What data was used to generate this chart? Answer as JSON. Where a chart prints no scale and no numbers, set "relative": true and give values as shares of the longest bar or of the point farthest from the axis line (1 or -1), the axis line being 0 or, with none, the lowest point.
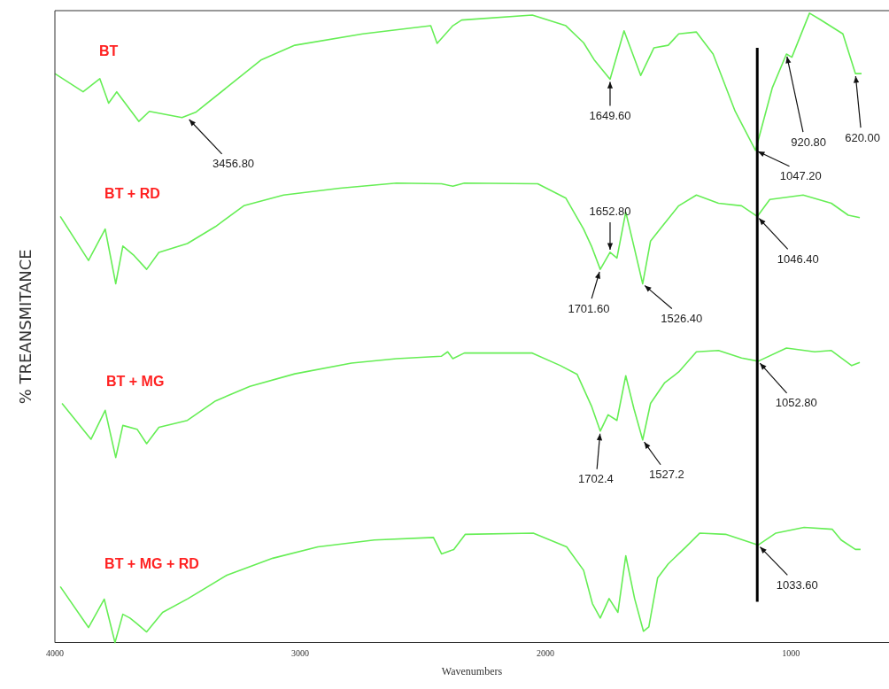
{
  "chart_data": {
    "type": "line",
    "relative": true,
    "xlabel": "Wavenumbers",
    "ylabel": "% TREANSMITANCE",
    "xlim": [
      4000,
      600
    ],
    "xticks": [
      4000,
      3000,
      2000,
      1000
    ],
    "grid": false,
    "legend": false,
    "marker": "none",
    "line_style": "solid",
    "ref_lines": [
      {
        "axis": "x",
        "value": 1137,
        "color": "#000000"
      }
    ],
    "series": [
      {
        "name": "BT",
        "color": "#66ee55",
        "x": [
          4000,
          3885,
          3817,
          3781,
          3748,
          3658,
          3615,
          3482,
          3424,
          3299,
          3158,
          3022,
          2745,
          2468,
          2442,
          2378,
          2342,
          2054,
          1917,
          1845,
          1802,
          1737,
          1680,
          1612,
          1558,
          1500,
          1457,
          1385,
          1317,
          1227,
          1144,
          1076,
          1018,
          996,
          924,
          881,
          788,
          737,
          712
        ],
        "values": [
          0.904,
          0.875,
          0.896,
          0.857,
          0.875,
          0.828,
          0.844,
          0.834,
          0.843,
          0.882,
          0.926,
          0.949,
          0.967,
          0.98,
          0.952,
          0.98,
          0.989,
          0.997,
          0.98,
          0.953,
          0.926,
          0.895,
          0.972,
          0.901,
          0.945,
          0.949,
          0.967,
          0.97,
          0.935,
          0.844,
          0.782,
          0.881,
          0.935,
          0.93,
          1,
          0.99,
          0.967,
          0.904,
          0.904
        ]
      },
      {
        "name": "BT + RD",
        "color": "#66ee55",
        "x": [
          3978,
          3863,
          3795,
          3752,
          3723,
          3680,
          3626,
          3576,
          3460,
          3345,
          3230,
          3068,
          2838,
          2608,
          2424,
          2378,
          2331,
          2032,
          1917,
          1845,
          1813,
          1777,
          1737,
          1709,
          1673,
          1640,
          1604,
          1572,
          1525,
          1457,
          1385,
          1295,
          1201,
          1137,
          1086,
          950,
          835,
          766,
          719
        ],
        "values": [
          0.677,
          0.607,
          0.657,
          0.57,
          0.63,
          0.616,
          0.593,
          0.62,
          0.634,
          0.661,
          0.694,
          0.711,
          0.722,
          0.73,
          0.729,
          0.725,
          0.73,
          0.729,
          0.706,
          0.657,
          0.63,
          0.593,
          0.62,
          0.611,
          0.684,
          0.63,
          0.57,
          0.638,
          0.661,
          0.694,
          0.711,
          0.698,
          0.694,
          0.677,
          0.704,
          0.711,
          0.698,
          0.679,
          0.675
        ]
      },
      {
        "name": "BT + MG",
        "color": "#66ee55",
        "x": [
          3971,
          3853,
          3795,
          3752,
          3723,
          3665,
          3626,
          3576,
          3460,
          3345,
          3205,
          3022,
          2791,
          2608,
          2424,
          2399,
          2378,
          2331,
          2054,
          1939,
          1871,
          1813,
          1777,
          1745,
          1709,
          1673,
          1640,
          1604,
          1572,
          1514,
          1457,
          1385,
          1295,
          1201,
          1133,
          1018,
          903,
          835,
          752,
          719
        ],
        "values": [
          0.38,
          0.323,
          0.369,
          0.294,
          0.345,
          0.339,
          0.316,
          0.342,
          0.353,
          0.384,
          0.407,
          0.427,
          0.444,
          0.451,
          0.455,
          0.462,
          0.451,
          0.46,
          0.46,
          0.44,
          0.426,
          0.376,
          0.336,
          0.362,
          0.353,
          0.424,
          0.372,
          0.322,
          0.38,
          0.413,
          0.43,
          0.462,
          0.464,
          0.452,
          0.447,
          0.468,
          0.462,
          0.464,
          0.44,
          0.445
        ]
      },
      {
        "name": "BT + MG + RD",
        "color": "#66ee55",
        "x": [
          3978,
          3863,
          3799,
          3755,
          3723,
          3694,
          3665,
          3626,
          3561,
          3457,
          3299,
          3112,
          2928,
          2698,
          2457,
          2424,
          2374,
          2327,
          2050,
          1914,
          1845,
          1809,
          1777,
          1741,
          1705,
          1673,
          1637,
          1601,
          1579,
          1543,
          1500,
          1428,
          1371,
          1266,
          1133,
          1061,
          946,
          831,
          795,
          737,
          716
        ],
        "values": [
          0.089,
          0.024,
          0.069,
          0,
          0.045,
          0.039,
          0.03,
          0.017,
          0.048,
          0.07,
          0.107,
          0.134,
          0.152,
          0.163,
          0.167,
          0.141,
          0.148,
          0.172,
          0.174,
          0.152,
          0.115,
          0.062,
          0.039,
          0.07,
          0.048,
          0.138,
          0.07,
          0.018,
          0.025,
          0.103,
          0.125,
          0.152,
          0.174,
          0.172,
          0.155,
          0.174,
          0.183,
          0.18,
          0.163,
          0.148,
          0.148
        ]
      }
    ],
    "annotations": [
      {
        "text": "3456.80",
        "x": 3460,
        "y": 0.834
      },
      {
        "text": "1649.60",
        "x": 1737,
        "y": 0.895
      },
      {
        "text": "920.80",
        "x": 1018,
        "y": 0.935
      },
      {
        "text": "620.00",
        "x": 737,
        "y": 0.904
      },
      {
        "text": "1047.20",
        "x": 1144,
        "y": 0.782
      },
      {
        "text": "1652.80",
        "x": 1737,
        "y": 0.62
      },
      {
        "text": "1701.60",
        "x": 1777,
        "y": 0.593
      },
      {
        "text": "1526.40",
        "x": 1604,
        "y": 0.57
      },
      {
        "text": "1046.40",
        "x": 1137,
        "y": 0.677
      },
      {
        "text": "1052.80",
        "x": 1133,
        "y": 0.447
      },
      {
        "text": "1702.4",
        "x": 1777,
        "y": 0.336
      },
      {
        "text": "1527.2",
        "x": 1604,
        "y": 0.322
      },
      {
        "text": "1033.60",
        "x": 1133,
        "y": 0.155
      }
    ]
  }
}
